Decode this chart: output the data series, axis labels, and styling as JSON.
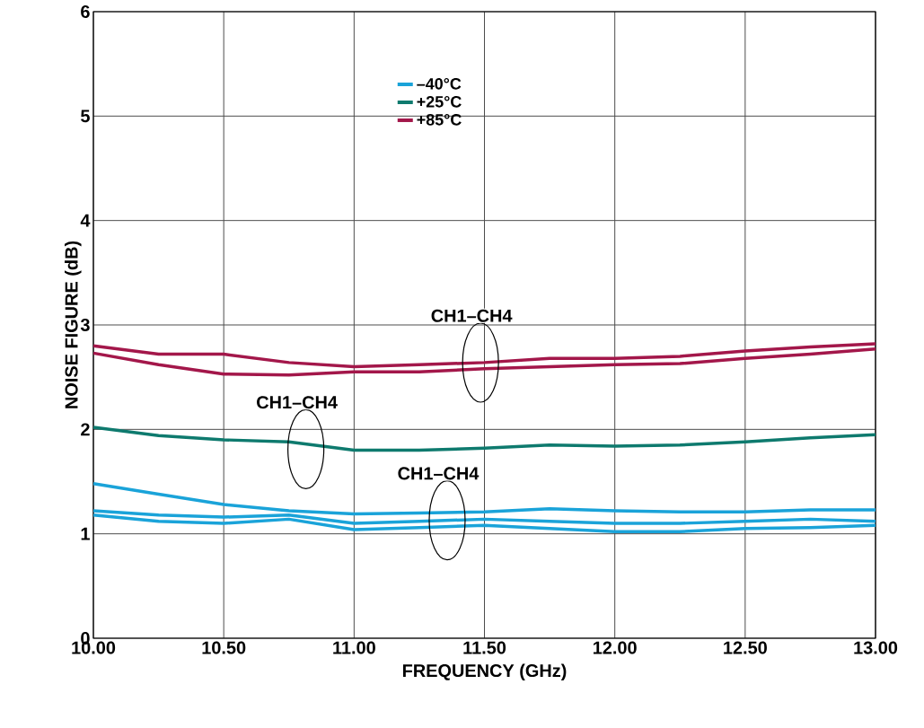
{
  "chart_data": {
    "type": "line",
    "xlabel": "FREQUENCY (GHz)",
    "ylabel": "NOISE FIGURE (dB)",
    "x": [
      10,
      10.25,
      10.5,
      10.75,
      11,
      11.25,
      11.5,
      11.75,
      12,
      12.25,
      12.5,
      12.75,
      13
    ],
    "series": [
      {
        "name": "–40°C",
        "color": "#1aa3d9",
        "values": [
          1.48,
          1.38,
          1.28,
          1.22,
          1.19,
          1.2,
          1.21,
          1.24,
          1.22,
          1.21,
          1.21,
          1.23,
          1.23
        ]
      },
      {
        "color": "#1aa3d9",
        "values": [
          1.22,
          1.18,
          1.16,
          1.18,
          1.1,
          1.12,
          1.14,
          1.12,
          1.1,
          1.1,
          1.12,
          1.14,
          1.12
        ]
      },
      {
        "color": "#1aa3d9",
        "values": [
          1.18,
          1.12,
          1.1,
          1.14,
          1.04,
          1.06,
          1.08,
          1.05,
          1.02,
          1.02,
          1.05,
          1.06,
          1.08
        ]
      },
      {
        "name": "+25°C",
        "color": "#0e7a6e",
        "values": [
          2.02,
          1.94,
          1.9,
          1.88,
          1.8,
          1.8,
          1.82,
          1.85,
          1.84,
          1.85,
          1.88,
          1.92,
          1.95
        ]
      },
      {
        "name": "+85°C",
        "color": "#a3174a",
        "values": [
          2.8,
          2.72,
          2.72,
          2.64,
          2.6,
          2.62,
          2.64,
          2.68,
          2.68,
          2.7,
          2.75,
          2.79,
          2.82
        ]
      },
      {
        "color": "#a3174a",
        "values": [
          2.73,
          2.62,
          2.53,
          2.52,
          2.55,
          2.55,
          2.58,
          2.6,
          2.62,
          2.63,
          2.68,
          2.72,
          2.77
        ]
      }
    ],
    "xlim": [
      10,
      13
    ],
    "ylim": [
      0,
      6
    ],
    "xticks": [
      {
        "value": 10,
        "label": "10.00"
      },
      {
        "value": 10.5,
        "label": "10.50"
      },
      {
        "value": 11,
        "label": "11.00"
      },
      {
        "value": 11.5,
        "label": "11.50"
      },
      {
        "value": 12,
        "label": "12.00"
      },
      {
        "value": 12.5,
        "label": "12.50"
      },
      {
        "value": 13,
        "label": "13.00"
      }
    ],
    "yticks": [
      0,
      1,
      2,
      3,
      4,
      5,
      6
    ],
    "annotations": [
      {
        "text": "CH1–CH4",
        "x": 11.485,
        "y": 2.639
      },
      {
        "text": "CH1–CH4",
        "x": 10.815,
        "y": 1.81
      },
      {
        "text": "CH1–CH4",
        "x": 11.357,
        "y": 1.129
      }
    ],
    "grid": true,
    "legend": "top",
    "marker": "none",
    "line_style": "solid"
  }
}
